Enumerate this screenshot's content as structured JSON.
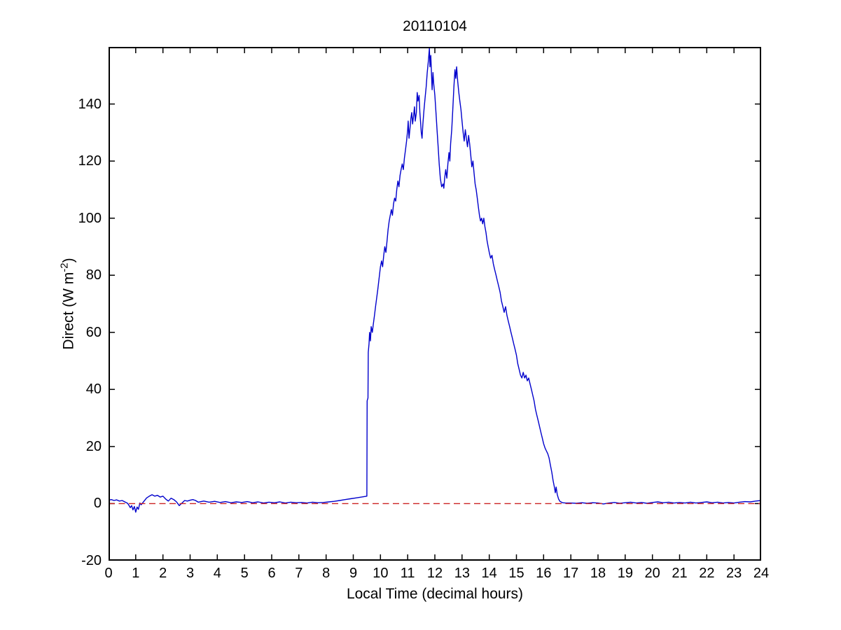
{
  "figure": {
    "title": "20110104",
    "xlabel": "Local Time (decimal hours)",
    "ylabel_prefix": "Direct (W m",
    "ylabel_sup": "-2",
    "ylabel_suffix": ")"
  },
  "colors": {
    "line": "#0000cc",
    "zero_line": "#cc2222",
    "axis": "#000000",
    "background": "#ffffff"
  },
  "chart_data": {
    "type": "line",
    "title": "20110104",
    "xlabel": "Local Time (decimal hours)",
    "ylabel": "Direct (W m^-2)",
    "xlim": [
      0,
      24
    ],
    "ylim": [
      -20,
      160
    ],
    "xticks": [
      0,
      1,
      2,
      3,
      4,
      5,
      6,
      7,
      8,
      9,
      10,
      11,
      12,
      13,
      14,
      15,
      16,
      17,
      18,
      19,
      20,
      21,
      22,
      23,
      24
    ],
    "yticks": [
      -20,
      0,
      20,
      40,
      60,
      80,
      100,
      120,
      140
    ],
    "grid": false,
    "legend": null,
    "series": [
      {
        "name": "direct-irradiance",
        "color": "#0000cc",
        "style": "solid",
        "points": [
          [
            0,
            1.2
          ],
          [
            0.1,
            1.4
          ],
          [
            0.2,
            1.1
          ],
          [
            0.3,
            1.3
          ],
          [
            0.4,
            0.9
          ],
          [
            0.5,
            1.1
          ],
          [
            0.6,
            0.6
          ],
          [
            0.7,
            0.1
          ],
          [
            0.75,
            -0.6
          ],
          [
            0.8,
            -1.4
          ],
          [
            0.85,
            -0.7
          ],
          [
            0.9,
            -2.2
          ],
          [
            0.95,
            -1.0
          ],
          [
            1.0,
            -3.0
          ],
          [
            1.05,
            -1.2
          ],
          [
            1.1,
            -2.0
          ],
          [
            1.15,
            0.2
          ],
          [
            1.2,
            -0.4
          ],
          [
            1.3,
            0.8
          ],
          [
            1.4,
            2.0
          ],
          [
            1.5,
            2.6
          ],
          [
            1.6,
            3.1
          ],
          [
            1.7,
            2.6
          ],
          [
            1.8,
            2.9
          ],
          [
            1.9,
            2.3
          ],
          [
            2.0,
            2.6
          ],
          [
            2.1,
            1.6
          ],
          [
            2.2,
            0.9
          ],
          [
            2.3,
            1.9
          ],
          [
            2.4,
            1.4
          ],
          [
            2.5,
            0.6
          ],
          [
            2.6,
            -0.7
          ],
          [
            2.7,
            0.2
          ],
          [
            2.8,
            1.1
          ],
          [
            2.9,
            0.9
          ],
          [
            3.0,
            1.2
          ],
          [
            3.1,
            1.4
          ],
          [
            3.2,
            1.1
          ],
          [
            3.3,
            0.5
          ],
          [
            3.5,
            0.9
          ],
          [
            3.7,
            0.5
          ],
          [
            3.9,
            0.8
          ],
          [
            4.1,
            0.4
          ],
          [
            4.3,
            0.7
          ],
          [
            4.5,
            0.3
          ],
          [
            4.7,
            0.6
          ],
          [
            4.9,
            0.4
          ],
          [
            5.1,
            0.7
          ],
          [
            5.3,
            0.3
          ],
          [
            5.5,
            0.6
          ],
          [
            5.7,
            0.2
          ],
          [
            5.9,
            0.5
          ],
          [
            6.1,
            0.3
          ],
          [
            6.3,
            0.6
          ],
          [
            6.5,
            0.2
          ],
          [
            6.7,
            0.5
          ],
          [
            6.9,
            0.3
          ],
          [
            7.1,
            0.4
          ],
          [
            7.3,
            0.2
          ],
          [
            7.5,
            0.5
          ],
          [
            7.7,
            0.3
          ],
          [
            7.9,
            0.4
          ],
          [
            8.1,
            0.6
          ],
          [
            8.3,
            0.8
          ],
          [
            8.5,
            1.1
          ],
          [
            8.7,
            1.4
          ],
          [
            8.9,
            1.7
          ],
          [
            9.1,
            2.0
          ],
          [
            9.3,
            2.3
          ],
          [
            9.5,
            2.6
          ],
          [
            9.51,
            36
          ],
          [
            9.54,
            37
          ],
          [
            9.55,
            53
          ],
          [
            9.58,
            56
          ],
          [
            9.6,
            60
          ],
          [
            9.63,
            57
          ],
          [
            9.66,
            62
          ],
          [
            9.7,
            60
          ],
          [
            9.74,
            63
          ],
          [
            9.78,
            66
          ],
          [
            9.82,
            69
          ],
          [
            9.86,
            72
          ],
          [
            9.9,
            75
          ],
          [
            9.95,
            79
          ],
          [
            10.0,
            83
          ],
          [
            10.04,
            85
          ],
          [
            10.08,
            83
          ],
          [
            10.12,
            87
          ],
          [
            10.16,
            90
          ],
          [
            10.2,
            88
          ],
          [
            10.24,
            92
          ],
          [
            10.28,
            96
          ],
          [
            10.32,
            99
          ],
          [
            10.36,
            101
          ],
          [
            10.4,
            103
          ],
          [
            10.44,
            101
          ],
          [
            10.48,
            105
          ],
          [
            10.52,
            107
          ],
          [
            10.56,
            106
          ],
          [
            10.6,
            110
          ],
          [
            10.64,
            113
          ],
          [
            10.68,
            111
          ],
          [
            10.72,
            115
          ],
          [
            10.76,
            117
          ],
          [
            10.8,
            119
          ],
          [
            10.84,
            117
          ],
          [
            10.88,
            121
          ],
          [
            10.92,
            124
          ],
          [
            10.96,
            127
          ],
          [
            11.0,
            131
          ],
          [
            11.02,
            134
          ],
          [
            11.05,
            128
          ],
          [
            11.08,
            131
          ],
          [
            11.12,
            135
          ],
          [
            11.15,
            137
          ],
          [
            11.18,
            133
          ],
          [
            11.22,
            136
          ],
          [
            11.25,
            139
          ],
          [
            11.28,
            134
          ],
          [
            11.32,
            137
          ],
          [
            11.35,
            144
          ],
          [
            11.38,
            141
          ],
          [
            11.42,
            143
          ],
          [
            11.45,
            137
          ],
          [
            11.48,
            133
          ],
          [
            11.5,
            130
          ],
          [
            11.53,
            128
          ],
          [
            11.56,
            133
          ],
          [
            11.6,
            138
          ],
          [
            11.64,
            142
          ],
          [
            11.68,
            146
          ],
          [
            11.72,
            151
          ],
          [
            11.76,
            155
          ],
          [
            11.8,
            159.5
          ],
          [
            11.82,
            153
          ],
          [
            11.85,
            157
          ],
          [
            11.88,
            150
          ],
          [
            11.9,
            145
          ],
          [
            11.93,
            151
          ],
          [
            11.96,
            147
          ],
          [
            12.0,
            143
          ],
          [
            12.04,
            137
          ],
          [
            12.08,
            131
          ],
          [
            12.12,
            125
          ],
          [
            12.16,
            119
          ],
          [
            12.2,
            114
          ],
          [
            12.25,
            111
          ],
          [
            12.3,
            112
          ],
          [
            12.33,
            110.5
          ],
          [
            12.36,
            114
          ],
          [
            12.4,
            117
          ],
          [
            12.44,
            114
          ],
          [
            12.48,
            119
          ],
          [
            12.52,
            123
          ],
          [
            12.55,
            120
          ],
          [
            12.58,
            126
          ],
          [
            12.62,
            131
          ],
          [
            12.66,
            138
          ],
          [
            12.7,
            146
          ],
          [
            12.74,
            152
          ],
          [
            12.77,
            149
          ],
          [
            12.8,
            153
          ],
          [
            12.84,
            148
          ],
          [
            12.88,
            144
          ],
          [
            12.92,
            141
          ],
          [
            12.96,
            138
          ],
          [
            13.0,
            134
          ],
          [
            13.04,
            130
          ],
          [
            13.08,
            127
          ],
          [
            13.12,
            131
          ],
          [
            13.16,
            128
          ],
          [
            13.2,
            125
          ],
          [
            13.24,
            129
          ],
          [
            13.28,
            126
          ],
          [
            13.32,
            122
          ],
          [
            13.36,
            118
          ],
          [
            13.4,
            120
          ],
          [
            13.44,
            116
          ],
          [
            13.48,
            112
          ],
          [
            13.52,
            110
          ],
          [
            13.56,
            107
          ],
          [
            13.6,
            104
          ],
          [
            13.64,
            101
          ],
          [
            13.68,
            99
          ],
          [
            13.72,
            100
          ],
          [
            13.76,
            98
          ],
          [
            13.8,
            100
          ],
          [
            13.84,
            97
          ],
          [
            13.88,
            95
          ],
          [
            13.92,
            92
          ],
          [
            13.96,
            90
          ],
          [
            14.0,
            88
          ],
          [
            14.05,
            86
          ],
          [
            14.1,
            87
          ],
          [
            14.15,
            84
          ],
          [
            14.2,
            82
          ],
          [
            14.25,
            80
          ],
          [
            14.3,
            78
          ],
          [
            14.35,
            76
          ],
          [
            14.4,
            74
          ],
          [
            14.45,
            71
          ],
          [
            14.5,
            69
          ],
          [
            14.55,
            67
          ],
          [
            14.6,
            69
          ],
          [
            14.65,
            66
          ],
          [
            14.7,
            64
          ],
          [
            14.75,
            62
          ],
          [
            14.8,
            60
          ],
          [
            14.85,
            58
          ],
          [
            14.9,
            56
          ],
          [
            14.95,
            54
          ],
          [
            15.0,
            52
          ],
          [
            15.05,
            49
          ],
          [
            15.1,
            47
          ],
          [
            15.15,
            45
          ],
          [
            15.2,
            44
          ],
          [
            15.25,
            46
          ],
          [
            15.3,
            44
          ],
          [
            15.35,
            45
          ],
          [
            15.4,
            43
          ],
          [
            15.45,
            44
          ],
          [
            15.5,
            42
          ],
          [
            15.55,
            40
          ],
          [
            15.6,
            38
          ],
          [
            15.65,
            36
          ],
          [
            15.7,
            33
          ],
          [
            15.75,
            31
          ],
          [
            15.8,
            29
          ],
          [
            15.85,
            27
          ],
          [
            15.9,
            25
          ],
          [
            15.95,
            23
          ],
          [
            16.0,
            21
          ],
          [
            16.05,
            19.5
          ],
          [
            16.1,
            18.5
          ],
          [
            16.15,
            17.5
          ],
          [
            16.2,
            16
          ],
          [
            16.25,
            13.5
          ],
          [
            16.3,
            11
          ],
          [
            16.35,
            8
          ],
          [
            16.4,
            5.5
          ],
          [
            16.43,
            3.8
          ],
          [
            16.46,
            5.8
          ],
          [
            16.5,
            3.2
          ],
          [
            16.55,
            1.6
          ],
          [
            16.6,
            0.8
          ],
          [
            16.7,
            0.3
          ],
          [
            16.8,
            0.2
          ],
          [
            17.0,
            0.2
          ],
          [
            17.2,
            0.1
          ],
          [
            17.4,
            0.3
          ],
          [
            17.6,
            0.1
          ],
          [
            17.8,
            0.3
          ],
          [
            18.0,
            0.2
          ],
          [
            18.2,
            -0.1
          ],
          [
            18.4,
            0.2
          ],
          [
            18.6,
            0.4
          ],
          [
            18.8,
            0.1
          ],
          [
            19.0,
            0.3
          ],
          [
            19.2,
            0.5
          ],
          [
            19.4,
            0.2
          ],
          [
            19.6,
            0.4
          ],
          [
            19.8,
            0.1
          ],
          [
            20.0,
            0.4
          ],
          [
            20.2,
            0.6
          ],
          [
            20.4,
            0.3
          ],
          [
            20.6,
            0.5
          ],
          [
            20.8,
            0.2
          ],
          [
            21.0,
            0.4
          ],
          [
            21.2,
            0.2
          ],
          [
            21.4,
            0.5
          ],
          [
            21.6,
            0.2
          ],
          [
            21.8,
            0.4
          ],
          [
            22.0,
            0.6
          ],
          [
            22.2,
            0.3
          ],
          [
            22.4,
            0.5
          ],
          [
            22.6,
            0.2
          ],
          [
            22.8,
            0.4
          ],
          [
            23.0,
            0.2
          ],
          [
            23.2,
            0.5
          ],
          [
            23.4,
            0.7
          ],
          [
            23.6,
            0.6
          ],
          [
            23.8,
            0.9
          ],
          [
            24.0,
            1.1
          ]
        ]
      },
      {
        "name": "zero-reference",
        "color": "#cc2222",
        "style": "dashed",
        "points": [
          [
            0,
            0
          ],
          [
            24,
            0
          ]
        ]
      }
    ]
  }
}
